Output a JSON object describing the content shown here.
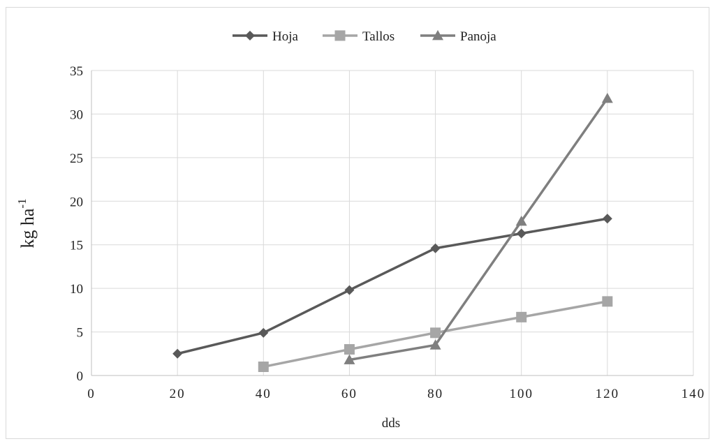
{
  "chart_data": {
    "type": "line",
    "title": "",
    "xlabel": "dds",
    "ylabel": "kg ha",
    "ylabel_superscript": "-1",
    "xlim": [
      0,
      140
    ],
    "ylim": [
      0,
      35
    ],
    "xticks": [
      0,
      20,
      40,
      60,
      80,
      100,
      120,
      140
    ],
    "yticks": [
      0,
      5,
      10,
      15,
      20,
      25,
      30,
      35
    ],
    "grid": true,
    "legend_position": "top-center",
    "series": [
      {
        "name": "Hoja",
        "marker": "diamond",
        "color": "#595959",
        "points": [
          {
            "x": 20,
            "y": 2.5
          },
          {
            "x": 40,
            "y": 4.9
          },
          {
            "x": 60,
            "y": 9.8
          },
          {
            "x": 80,
            "y": 14.6
          },
          {
            "x": 100,
            "y": 16.3
          },
          {
            "x": 120,
            "y": 18.0
          }
        ]
      },
      {
        "name": "Tallos",
        "marker": "square",
        "color": "#a6a6a6",
        "points": [
          {
            "x": 40,
            "y": 1.0
          },
          {
            "x": 60,
            "y": 3.0
          },
          {
            "x": 80,
            "y": 4.9
          },
          {
            "x": 100,
            "y": 6.7
          },
          {
            "x": 120,
            "y": 8.5
          }
        ]
      },
      {
        "name": "Panoja",
        "marker": "triangle",
        "color": "#7f7f7f",
        "points": [
          {
            "x": 60,
            "y": 1.8
          },
          {
            "x": 80,
            "y": 3.5
          },
          {
            "x": 100,
            "y": 17.7
          },
          {
            "x": 120,
            "y": 31.8
          }
        ]
      }
    ]
  }
}
